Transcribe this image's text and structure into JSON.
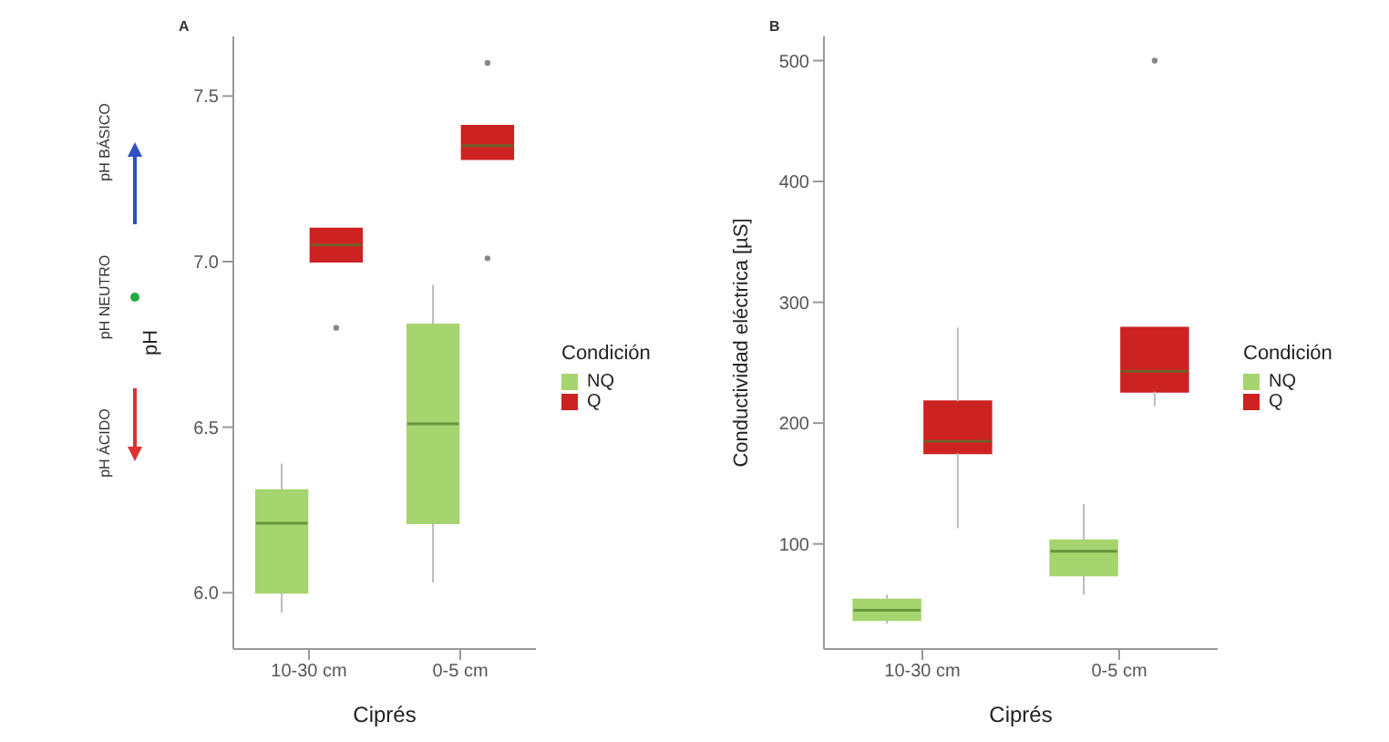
{
  "chart_data": [
    {
      "type": "box",
      "title": "A",
      "xlabel": "Ciprés",
      "ylabel": "pH",
      "legend_title": "Condición",
      "legend": "right",
      "categories": [
        "10-30 cm",
        "0-5 cm"
      ],
      "ylim": [
        5.83,
        7.68
      ],
      "yticks": [
        {
          "value": 6,
          "label": "6.0"
        },
        6.5,
        {
          "value": 7,
          "label": "7.0"
        },
        7.5
      ],
      "annotations": [
        "pH ÁCIDO",
        "pH NEUTRO",
        "pH BÁSICO"
      ],
      "series": [
        {
          "name": "NQ",
          "color": "#a6d46e",
          "boxes": [
            {
              "low": 5.94,
              "q1": 6.0,
              "median": 6.21,
              "q3": 6.31,
              "high": 6.39
            },
            {
              "low": 6.03,
              "q1": 6.21,
              "median": 6.51,
              "q3": 6.81,
              "high": 6.93
            }
          ]
        },
        {
          "name": "Q",
          "color": "#cc2222",
          "boxes": [
            {
              "low": 7.0,
              "q1": 7.0,
              "median": 7.05,
              "q3": 7.1,
              "high": 7.1,
              "outliers": [
                6.8
              ]
            },
            {
              "low": 7.31,
              "q1": 7.31,
              "median": 7.35,
              "q3": 7.41,
              "high": 7.41,
              "outliers": [
                7.01,
                7.6
              ]
            }
          ]
        }
      ]
    },
    {
      "type": "box",
      "title": "B",
      "xlabel": "Ciprés",
      "ylabel": "Conductividad eléctrica [µS]",
      "legend_title": "Condición",
      "legend": "right",
      "categories": [
        "10-30 cm",
        "0-5 cm"
      ],
      "ylim": [
        13,
        520
      ],
      "yticks": [
        100,
        200,
        300,
        400,
        500
      ],
      "series": [
        {
          "name": "NQ",
          "color": "#a6d46e",
          "boxes": [
            {
              "low": 34,
              "q1": 37,
              "median": 45,
              "q3": 54,
              "high": 58
            },
            {
              "low": 58,
              "q1": 74,
              "median": 94,
              "q3": 103,
              "high": 133
            }
          ]
        },
        {
          "name": "Q",
          "color": "#cc2222",
          "boxes": [
            {
              "low": 113,
              "q1": 175,
              "median": 185,
              "q3": 218,
              "high": 279
            },
            {
              "low": 214,
              "q1": 226,
              "median": 243,
              "q3": 279,
              "high": 279,
              "outliers": [
                500
              ]
            }
          ]
        }
      ]
    }
  ]
}
